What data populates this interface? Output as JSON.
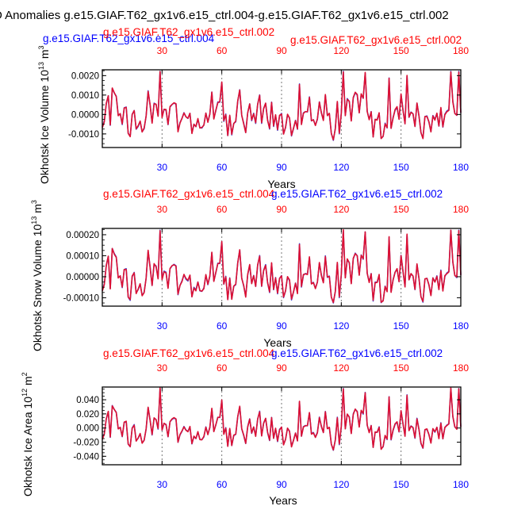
{
  "figure": {
    "title": "D Anomalies g.e15.GIAF.T62_gx1v6.e15_ctrl.004-g.e15.GIAF.T62_gx1v6.e15_ctrl.002",
    "colors": {
      "blue": "#0000ff",
      "red": "#ff0000",
      "line_red": "#dd1133",
      "line_blue": "#4444cc"
    }
  },
  "chart_data": [
    {
      "type": "line",
      "ylabel": "Okhotsk Ice Volume 10^13 m^3",
      "ylabel_main": "Okhotsk Ice Volume 10",
      "ylabel_exp1": "13",
      "ylabel_unit": " m",
      "ylabel_exp2": "3",
      "xlabel": "Years",
      "top_left_title": "g.e15.GIAF.T62_gx1v6.e15_ctrl.004",
      "top_right_title": "g.e15.GIAF.T62_gx1v6.e15_ctrl.002",
      "xlim": [
        0,
        180
      ],
      "xticks": [
        30,
        60,
        90,
        120,
        150,
        180
      ],
      "ylim": [
        -0.0017,
        0.0023
      ],
      "yticks": [
        -0.001,
        0.0,
        0.001,
        0.002
      ],
      "ytick_labels": [
        "-0.0010",
        "0.0000",
        "0.0010",
        "0.0020"
      ],
      "series": [
        {
          "name": "g.e15.GIAF.T62_gx1v6.e15_ctrl.004",
          "values": []
        },
        {
          "name": "g.e15.GIAF.T62_gx1v6.e15_ctrl.002",
          "values": []
        }
      ]
    },
    {
      "type": "line",
      "ylabel": "Okhotsk Snow Volume 10^13 m^3",
      "ylabel_main": "Okhotsk Snow Volume 10",
      "ylabel_exp1": "13",
      "ylabel_unit": " m",
      "ylabel_exp2": "3",
      "xlabel": "Years",
      "top_left_title": "g.e15.GIAF.T62_gx1v6.e15_ctrl.004",
      "top_right_title": "g.e15.GIAF.T62_gx1v6.e15_ctrl.002",
      "xlim": [
        0,
        180
      ],
      "xticks": [
        30,
        60,
        90,
        120,
        150,
        180
      ],
      "ylim": [
        -0.00014,
        0.00023
      ],
      "yticks": [
        -0.0001,
        0.0,
        0.0001,
        0.0002
      ],
      "ytick_labels": [
        "-0.00010",
        "0.00000",
        "0.00010",
        "0.00020"
      ],
      "series": [
        {
          "name": "g.e15.GIAF.T62_gx1v6.e15_ctrl.004",
          "values": []
        },
        {
          "name": "g.e15.GIAF.T62_gx1v6.e15_ctrl.002",
          "values": []
        }
      ]
    },
    {
      "type": "line",
      "ylabel": "Okhotsk Ice Area 10^12 m^2",
      "ylabel_main": "Okhotsk Ice Area 10",
      "ylabel_exp1": "12",
      "ylabel_unit": " m",
      "ylabel_exp2": "2",
      "xlabel": "Years",
      "top_left_title": "g.e15.GIAF.T62_gx1v6.e15_ctrl.004",
      "top_right_title": "g.e15.GIAF.T62_gx1v6.e15_ctrl.002",
      "xlim": [
        0,
        180
      ],
      "xticks": [
        30,
        60,
        90,
        120,
        150,
        180
      ],
      "ylim": [
        -0.052,
        0.058
      ],
      "yticks": [
        -0.04,
        -0.02,
        0.0,
        0.02,
        0.04
      ],
      "ytick_labels": [
        "-0.040",
        "-0.020",
        "0.000",
        "0.020",
        "0.040"
      ],
      "series": [
        {
          "name": "g.e15.GIAF.T62_gx1v6.e15_ctrl.004",
          "values": []
        },
        {
          "name": "g.e15.GIAF.T62_gx1v6.e15_ctrl.002",
          "values": []
        }
      ]
    }
  ]
}
